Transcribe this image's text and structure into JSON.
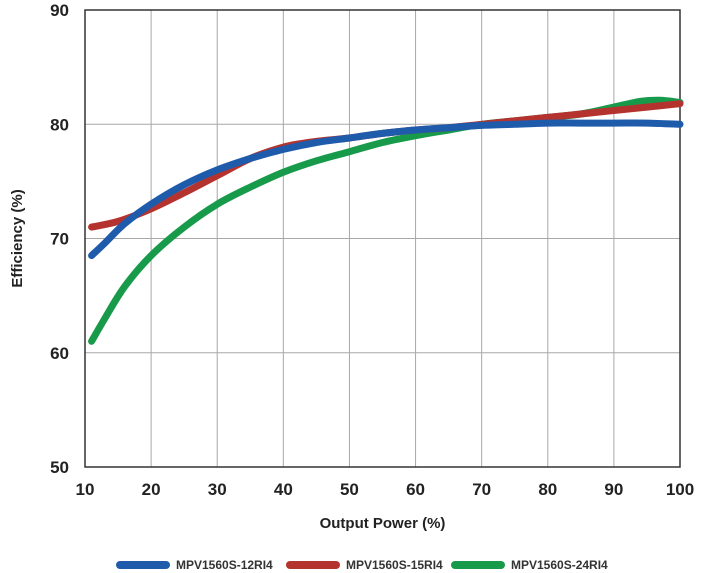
{
  "chart_data": {
    "type": "line",
    "title": "",
    "xlabel": "Output Power (%)",
    "ylabel": "Efficiency (%)",
    "xlim": [
      10,
      100
    ],
    "ylim": [
      50,
      90
    ],
    "xticks": [
      10,
      20,
      30,
      40,
      50,
      60,
      70,
      80,
      90,
      100
    ],
    "yticks": [
      50,
      60,
      70,
      80,
      90
    ],
    "xtick_labels": [
      "10",
      "20",
      "30",
      "40",
      "50",
      "60",
      "70",
      "80",
      "90",
      "100"
    ],
    "ytick_labels": [
      "50",
      "60",
      "70",
      "80",
      "90"
    ],
    "grid": true,
    "legend_position": "bottom",
    "series": [
      {
        "name": "MPV1560S-12RI4",
        "color": "#1f5bab",
        "x": [
          11,
          13,
          16,
          20,
          25,
          30,
          35,
          40,
          45,
          50,
          55,
          60,
          65,
          70,
          75,
          80,
          85,
          90,
          95,
          100
        ],
        "y": [
          68.5,
          69.6,
          71.3,
          73.0,
          74.7,
          76.0,
          77.0,
          77.8,
          78.4,
          78.8,
          79.2,
          79.5,
          79.7,
          79.9,
          80.0,
          80.1,
          80.1,
          80.1,
          80.1,
          80.0
        ]
      },
      {
        "name": "MPV1560S-15RI4",
        "color": "#b5332e",
        "x": [
          11,
          15,
          20,
          25,
          30,
          35,
          40,
          45,
          50,
          55,
          60,
          65,
          70,
          75,
          80,
          85,
          90,
          95,
          100
        ],
        "y": [
          71.0,
          71.5,
          72.6,
          74.0,
          75.5,
          77.0,
          78.0,
          78.5,
          78.8,
          79.2,
          79.5,
          79.7,
          80.0,
          80.3,
          80.6,
          80.9,
          81.2,
          81.5,
          81.8
        ]
      },
      {
        "name": "MPV1560S-24RI4",
        "color": "#189a4b",
        "x": [
          11,
          13,
          16,
          20,
          25,
          30,
          35,
          40,
          45,
          50,
          55,
          60,
          65,
          70,
          75,
          80,
          85,
          90,
          94,
          97,
          100
        ],
        "y": [
          61.0,
          63.0,
          65.8,
          68.5,
          71.0,
          73.0,
          74.5,
          75.8,
          76.8,
          77.6,
          78.4,
          79.0,
          79.5,
          80.0,
          80.3,
          80.6,
          80.9,
          81.5,
          82.0,
          82.1,
          81.9
        ]
      }
    ]
  }
}
